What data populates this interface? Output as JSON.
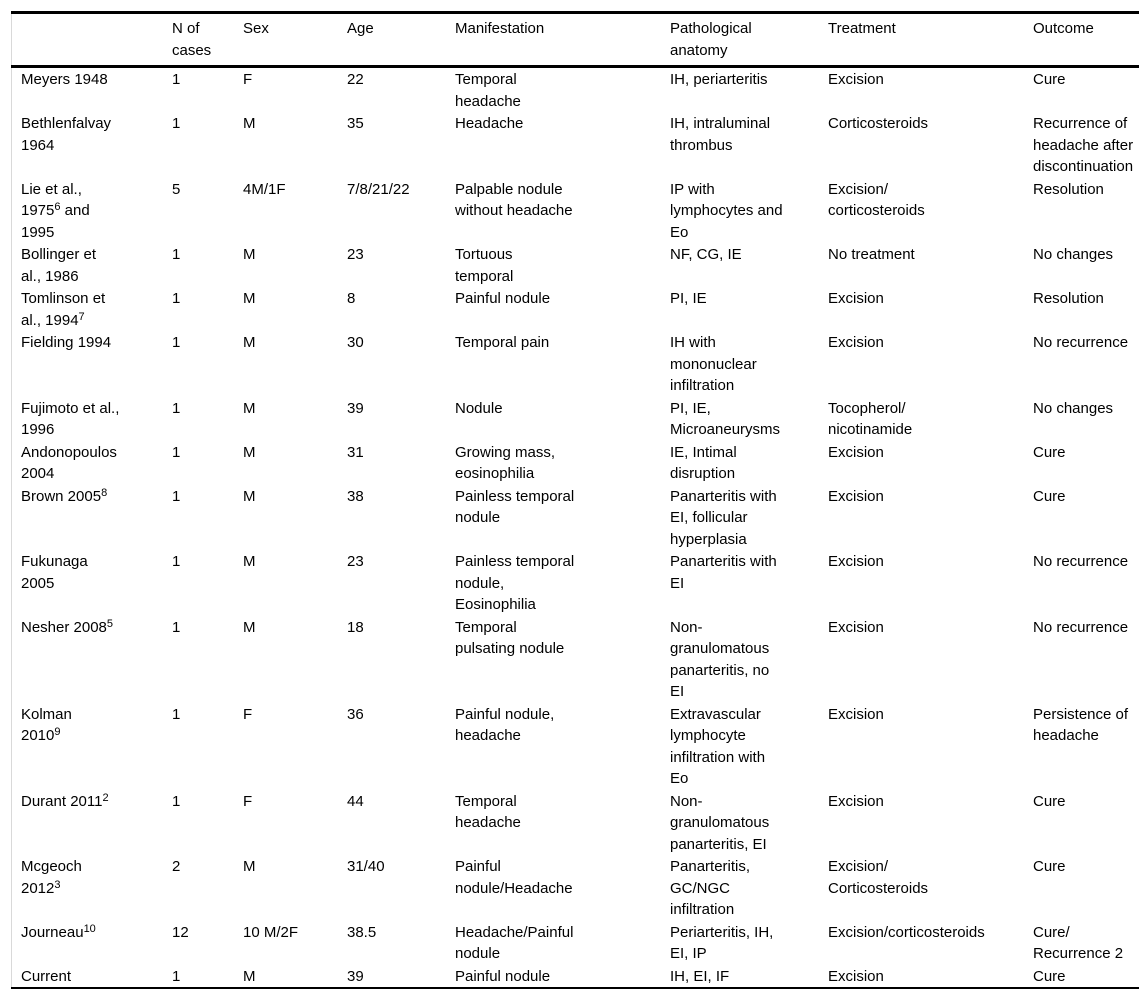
{
  "colors": {
    "rule": "#000000",
    "side_border": "#d9d9d9",
    "text": "#000000",
    "background": "#ffffff"
  },
  "table": {
    "columns": [
      {
        "label": ""
      },
      {
        "label": "N of\ncases"
      },
      {
        "label": "Sex"
      },
      {
        "label": "Age"
      },
      {
        "label": "Manifestation"
      },
      {
        "label": "Pathological\nanatomy"
      },
      {
        "label": "Treatment"
      },
      {
        "label": "Outcome"
      }
    ],
    "rows": [
      {
        "study": "Meyers 1948",
        "n_cases": "1",
        "sex": "F",
        "age": "22",
        "manifestation": "Temporal\nheadache",
        "pathological_anatomy": "IH, periarteritis",
        "treatment": "Excision",
        "outcome": "Cure"
      },
      {
        "study": "Bethlenfalvay\n1964",
        "n_cases": "1",
        "sex": "M",
        "age": "35",
        "manifestation": "Headache",
        "pathological_anatomy": "IH, intraluminal\nthrombus",
        "treatment": "Corticosteroids",
        "outcome": "Recurrence of\nheadache after\ndiscontinuation"
      },
      {
        "study": [
          "Lie et al.,\n1975",
          {
            "sup": "6"
          },
          " and\n1995"
        ],
        "n_cases": "5",
        "sex": "4M/1F",
        "age": "7/8/21/22",
        "manifestation": "Palpable nodule\nwithout headache",
        "pathological_anatomy": "IP with\nlymphocytes and\nEo",
        "treatment": "Excision/\ncorticosteroids",
        "outcome": "Resolution"
      },
      {
        "study": "Bollinger et\nal., 1986",
        "n_cases": "1",
        "sex": "M",
        "age": "23",
        "manifestation": "Tortuous\ntemporal",
        "pathological_anatomy": "NF, CG, IE",
        "treatment": "No treatment",
        "outcome": "No changes"
      },
      {
        "study": [
          "Tomlinson et\nal., 1994",
          {
            "sup": "7"
          }
        ],
        "n_cases": "1",
        "sex": "M",
        "age": "8",
        "manifestation": "Painful nodule",
        "pathological_anatomy": "PI, IE",
        "treatment": "Excision",
        "outcome": "Resolution"
      },
      {
        "study": "Fielding 1994",
        "n_cases": "1",
        "sex": "M",
        "age": "30",
        "manifestation": "Temporal pain",
        "pathological_anatomy": "IH with\nmononuclear\ninfiltration",
        "treatment": "Excision",
        "outcome": "No recurrence"
      },
      {
        "study": "Fujimoto et al.,\n1996",
        "n_cases": "1",
        "sex": "M",
        "age": "39",
        "manifestation": "Nodule",
        "pathological_anatomy": "PI, IE,\nMicroaneurysms",
        "treatment": "Tocopherol/\nnicotinamide",
        "outcome": "No changes"
      },
      {
        "study": "Andonopoulos\n2004",
        "n_cases": "1",
        "sex": "M",
        "age": "31",
        "manifestation": "Growing mass,\neosinophilia",
        "pathological_anatomy": "IE, Intimal\ndisruption",
        "treatment": "Excision",
        "outcome": "Cure"
      },
      {
        "study": [
          "Brown 2005",
          {
            "sup": "8"
          }
        ],
        "n_cases": "1",
        "sex": "M",
        "age": "38",
        "manifestation": "Painless temporal\nnodule",
        "pathological_anatomy": "Panarteritis with\nEI, follicular\nhyperplasia",
        "treatment": "Excision",
        "outcome": "Cure"
      },
      {
        "study": "Fukunaga\n2005",
        "n_cases": "1",
        "sex": "M",
        "age": "23",
        "manifestation": "Painless temporal\nnodule,\nEosinophilia",
        "pathological_anatomy": "Panarteritis with\nEI",
        "treatment": "Excision",
        "outcome": "No recurrence"
      },
      {
        "study": [
          "Nesher 2008",
          {
            "sup": "5"
          }
        ],
        "n_cases": "1",
        "sex": "M",
        "age": "18",
        "manifestation": "Temporal\npulsating nodule",
        "pathological_anatomy": "Non-\ngranulomatous\npanarteritis, no\nEI",
        "treatment": "Excision",
        "outcome": "No recurrence"
      },
      {
        "study": [
          "Kolman\n2010",
          {
            "sup": "9"
          }
        ],
        "n_cases": "1",
        "sex": "F",
        "age": "36",
        "manifestation": "Painful nodule,\nheadache",
        "pathological_anatomy": "Extravascular\nlymphocyte\ninfiltration with\nEo",
        "treatment": "Excision",
        "outcome": "Persistence of\nheadache"
      },
      {
        "study": [
          "Durant 2011",
          {
            "sup": "2"
          }
        ],
        "n_cases": "1",
        "sex": "F",
        "age": "44",
        "manifestation": "Temporal\nheadache",
        "pathological_anatomy": "Non-\ngranulomatous\npanarteritis, EI",
        "treatment": "Excision",
        "outcome": "Cure"
      },
      {
        "study": [
          "Mcgeoch\n2012",
          {
            "sup": "3"
          }
        ],
        "n_cases": "2",
        "sex": "M",
        "age": "31/40",
        "manifestation": "Painful\nnodule/Headache",
        "pathological_anatomy": "Panarteritis,\nGC/NGC\ninfiltration",
        "treatment": "Excision/\nCorticosteroids",
        "outcome": "Cure"
      },
      {
        "study": [
          "Journeau",
          {
            "sup": "10"
          }
        ],
        "n_cases": "12",
        "sex": "10 M/2F",
        "age": "38.5",
        "manifestation": "Headache/Painful\nnodule",
        "pathological_anatomy": "Periarteritis, IH,\nEI, IP",
        "treatment": "Excision/corticosteroids",
        "outcome": "Cure/\nRecurrence 2"
      },
      {
        "study": "Current",
        "n_cases": "1",
        "sex": "M",
        "age": "39",
        "manifestation": "Painful nodule",
        "pathological_anatomy": "IH, EI, IF",
        "treatment": "Excision",
        "outcome": "Cure"
      }
    ]
  }
}
